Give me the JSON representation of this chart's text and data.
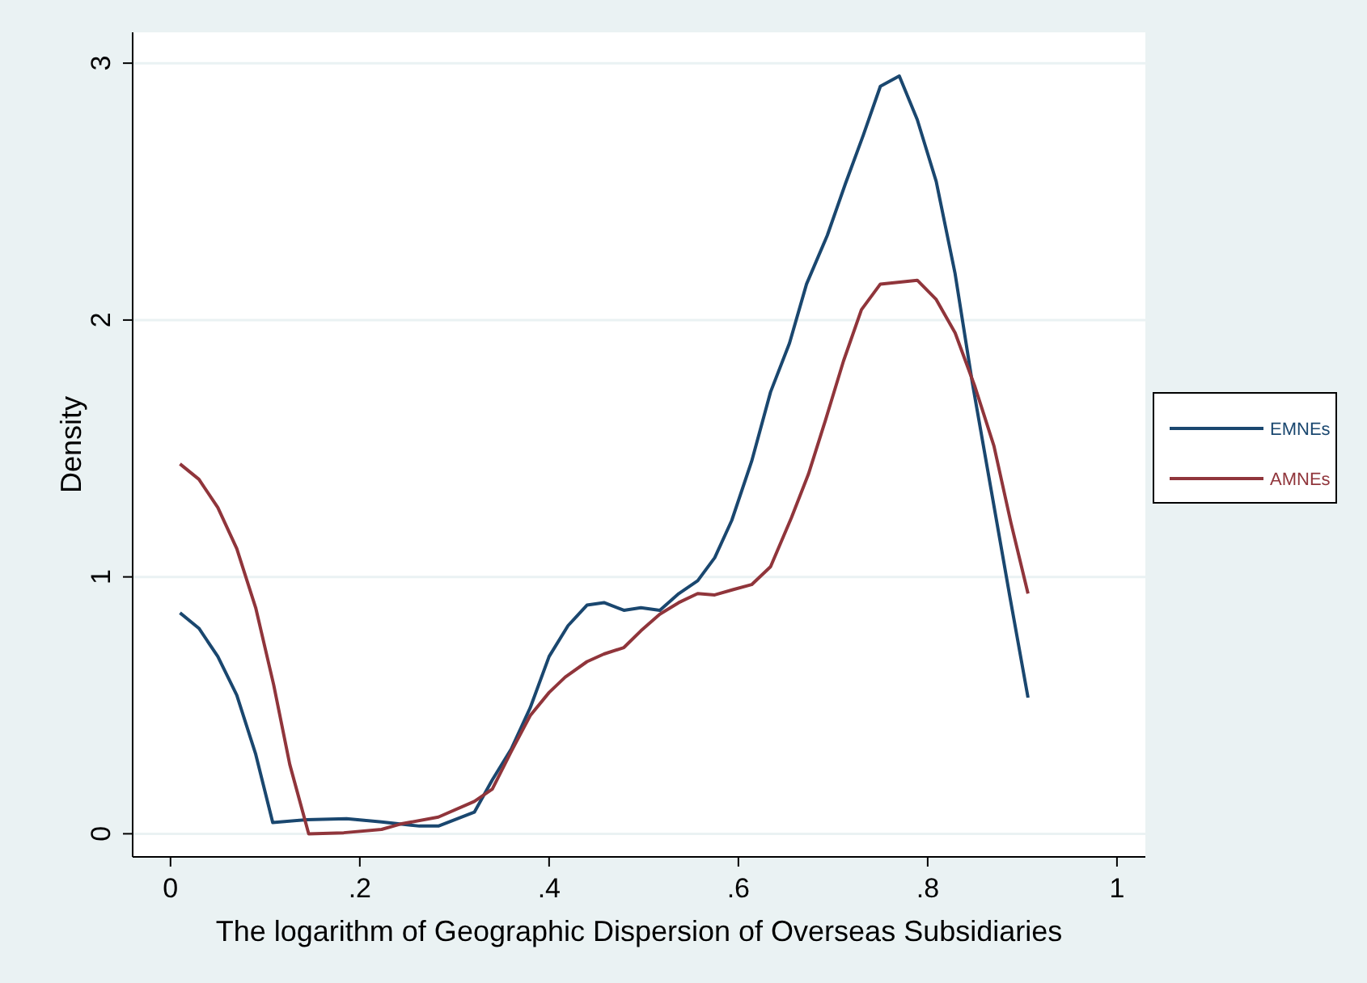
{
  "chart_data": {
    "type": "line",
    "xlabel": "The logarithm of Geographic Dispersion of Overseas Subsidiaries",
    "ylabel": "Density",
    "xlim": [
      -0.04,
      1.03
    ],
    "ylim": [
      -0.09,
      3.12
    ],
    "xticks": [
      {
        "value": 0,
        "label": "0"
      },
      {
        "value": 0.2,
        "label": ".2"
      },
      {
        "value": 0.4,
        "label": ".4"
      },
      {
        "value": 0.6,
        "label": ".6"
      },
      {
        "value": 0.8,
        "label": ".8"
      },
      {
        "value": 1,
        "label": "1"
      }
    ],
    "yticks": [
      0,
      1,
      2,
      3
    ],
    "grid": "y",
    "legend": "right",
    "marker": "none",
    "line_style": "solid",
    "series": [
      {
        "name": "EMNEs",
        "color": "#1a476f",
        "x": [
          0.01,
          0.03,
          0.05,
          0.07,
          0.09,
          0.108,
          0.144,
          0.186,
          0.223,
          0.263,
          0.283,
          0.321,
          0.34,
          0.36,
          0.38,
          0.4,
          0.42,
          0.44,
          0.458,
          0.479,
          0.497,
          0.517,
          0.537,
          0.557,
          0.575,
          0.593,
          0.614,
          0.634,
          0.654,
          0.672,
          0.694,
          0.713,
          0.732,
          0.75,
          0.77,
          0.789,
          0.809,
          0.829,
          0.847,
          0.867,
          0.887,
          0.906
        ],
        "values": [
          0.86,
          0.8,
          0.69,
          0.54,
          0.31,
          0.044,
          0.055,
          0.059,
          0.046,
          0.03,
          0.03,
          0.084,
          0.21,
          0.33,
          0.49,
          0.69,
          0.81,
          0.89,
          0.9,
          0.87,
          0.88,
          0.87,
          0.935,
          0.985,
          1.075,
          1.22,
          1.45,
          1.72,
          1.91,
          2.14,
          2.33,
          2.53,
          2.72,
          2.91,
          2.95,
          2.78,
          2.54,
          2.18,
          1.76,
          1.34,
          0.92,
          0.53
        ]
      },
      {
        "name": "AMNEs",
        "color": "#90353b",
        "x": [
          0.01,
          0.03,
          0.05,
          0.07,
          0.09,
          0.109,
          0.126,
          0.146,
          0.183,
          0.223,
          0.243,
          0.283,
          0.321,
          0.34,
          0.36,
          0.38,
          0.4,
          0.417,
          0.44,
          0.458,
          0.479,
          0.497,
          0.517,
          0.537,
          0.557,
          0.575,
          0.594,
          0.614,
          0.634,
          0.656,
          0.674,
          0.692,
          0.711,
          0.73,
          0.75,
          0.789,
          0.809,
          0.829,
          0.85,
          0.87,
          0.888,
          0.906
        ],
        "values": [
          1.44,
          1.38,
          1.27,
          1.11,
          0.88,
          0.58,
          0.27,
          0.0,
          0.004,
          0.017,
          0.038,
          0.065,
          0.126,
          0.174,
          0.32,
          0.46,
          0.55,
          0.61,
          0.67,
          0.7,
          0.725,
          0.79,
          0.855,
          0.9,
          0.935,
          0.93,
          0.95,
          0.97,
          1.04,
          1.23,
          1.4,
          1.61,
          1.84,
          2.04,
          2.14,
          2.155,
          2.08,
          1.95,
          1.74,
          1.51,
          1.21,
          0.935
        ]
      }
    ]
  }
}
